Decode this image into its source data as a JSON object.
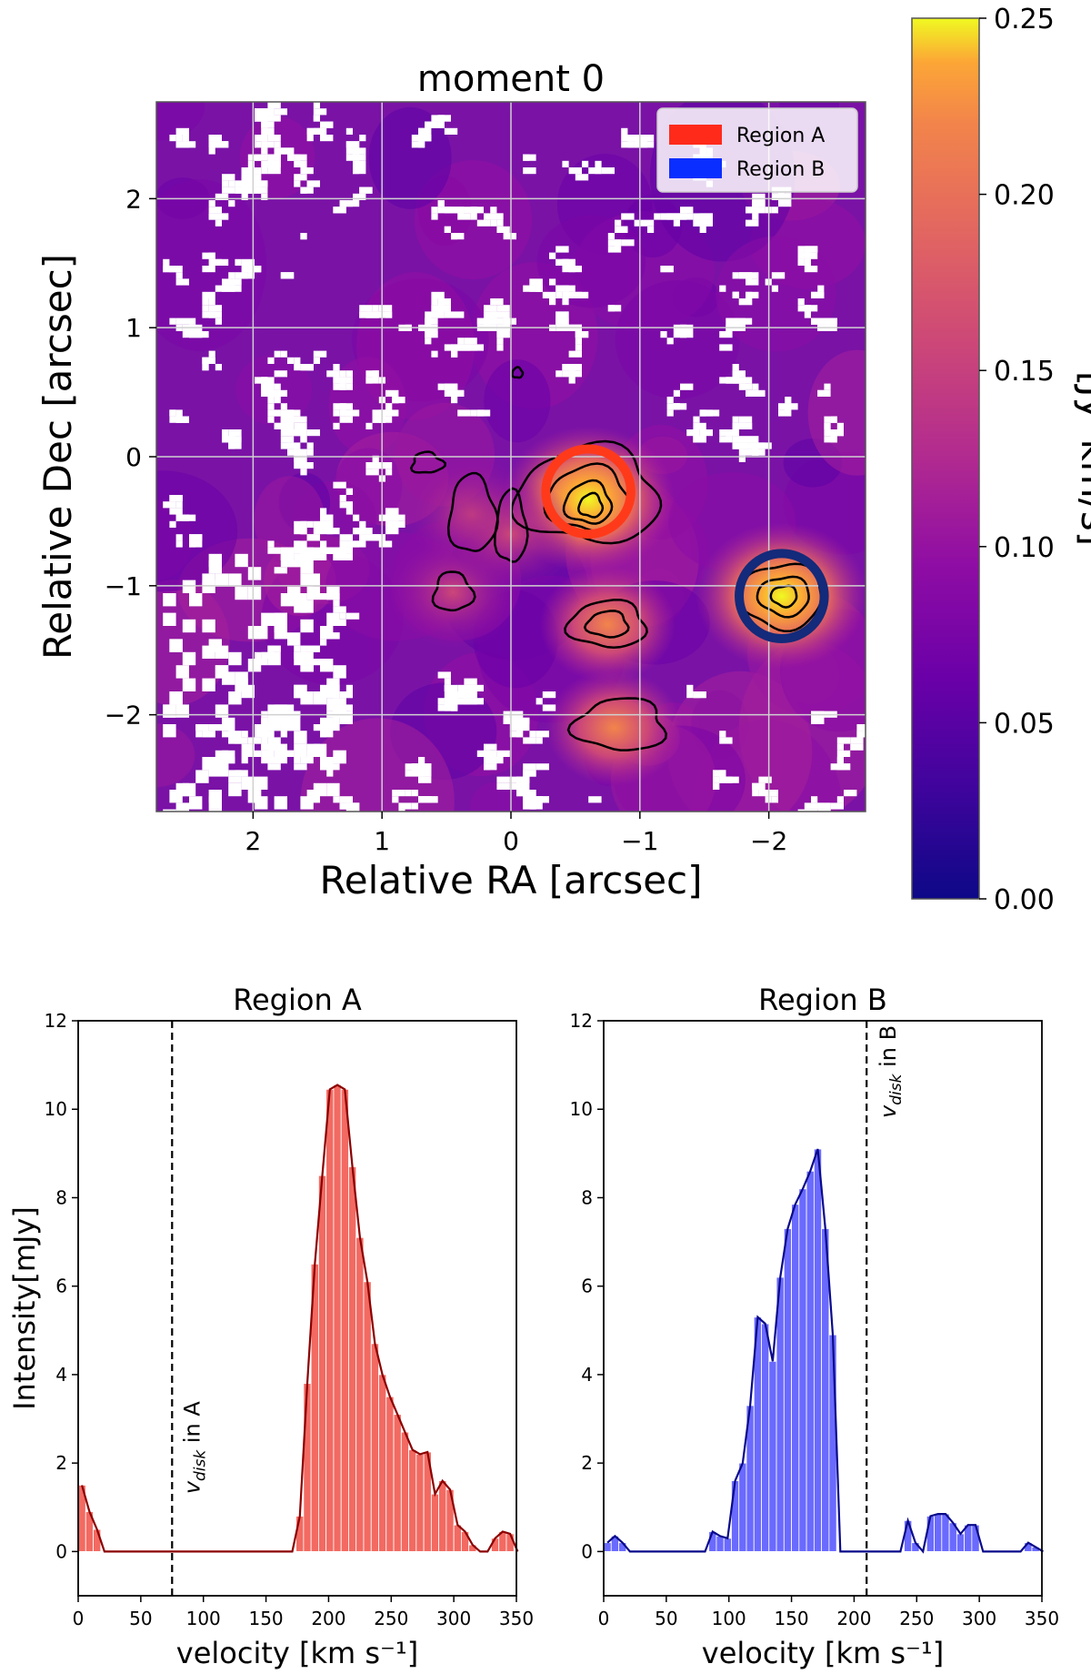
{
  "chart_data": [
    {
      "type": "heatmap",
      "title": "moment 0",
      "xlabel": "Relative RA [arcsec]",
      "ylabel": "Relative Dec [arcsec]",
      "xlim": [
        2.75,
        -2.75
      ],
      "ylim": [
        -2.75,
        2.75
      ],
      "xticks": [
        2,
        1,
        0,
        -1,
        -2
      ],
      "xtick_labels": [
        "2",
        "1",
        "0",
        "−1",
        "−2"
      ],
      "yticks": [
        2,
        1,
        0,
        -1,
        -2
      ],
      "ytick_labels": [
        "2",
        "1",
        "0",
        "−1",
        "−2"
      ],
      "grid": true,
      "colormap": "plasma",
      "colorbar": {
        "label": "[Jy*km/s]",
        "range": [
          0.0,
          0.25
        ],
        "ticks": [
          0.25,
          0.2,
          0.15,
          0.1,
          0.05,
          0.0
        ],
        "tick_labels": [
          "0.25",
          "0.20",
          "0.15",
          "0.10",
          "0.05",
          "0.00"
        ]
      },
      "legend": {
        "placement": "top-right",
        "entries": [
          {
            "label": "Region A",
            "color": "#ff2a1a"
          },
          {
            "label": "Region B",
            "color": "#0a2eff"
          }
        ]
      },
      "regions": [
        {
          "name": "Region A",
          "ra": -0.6,
          "dec": -0.27,
          "radius": 0.33,
          "color": "#ff3a1a"
        },
        {
          "name": "Region B",
          "ra": -2.1,
          "dec": -1.08,
          "radius": 0.33,
          "color": "#142a7a"
        }
      ],
      "emission_peaks": [
        {
          "ra": -0.6,
          "dec": -0.33,
          "value": 0.25
        },
        {
          "ra": -2.1,
          "dec": -1.08,
          "value": 0.21
        },
        {
          "ra": -0.75,
          "dec": -1.3,
          "value": 0.17
        },
        {
          "ra": -0.8,
          "dec": -2.1,
          "value": 0.15
        },
        {
          "ra": 0.3,
          "dec": -0.45,
          "value": 0.14
        },
        {
          "ra": 0.45,
          "dec": -1.05,
          "value": 0.13
        },
        {
          "ra": 0.0,
          "dec": -0.6,
          "value": 0.13
        }
      ]
    },
    {
      "type": "bar",
      "title": "Region A",
      "xlabel": "velocity [km s⁻¹]",
      "ylabel": "Intensity[mJy]",
      "xlim": [
        0,
        350
      ],
      "ylim": [
        -1,
        12
      ],
      "xticks": [
        0,
        50,
        100,
        150,
        200,
        250,
        300,
        350
      ],
      "yticks": [
        0,
        2,
        4,
        6,
        8,
        10,
        12
      ],
      "bar_color": "#f26a62",
      "line_color": "#8b0000",
      "bin_width": 6,
      "x": [
        0,
        6,
        12,
        18,
        24,
        30,
        36,
        42,
        48,
        54,
        60,
        66,
        72,
        78,
        84,
        90,
        96,
        102,
        108,
        114,
        120,
        126,
        132,
        138,
        144,
        150,
        156,
        162,
        168,
        174,
        180,
        186,
        192,
        198,
        204,
        210,
        216,
        222,
        228,
        234,
        240,
        246,
        252,
        258,
        264,
        270,
        276,
        282,
        288,
        294,
        300,
        306,
        312,
        318,
        324,
        330,
        336,
        342,
        348
      ],
      "values": [
        1.5,
        0.9,
        0.5,
        0,
        0,
        0,
        0,
        0,
        0,
        0,
        0,
        0,
        0,
        0,
        0,
        0,
        0,
        0,
        0,
        0,
        0,
        0,
        0,
        0,
        0,
        0,
        0,
        0,
        0,
        0.8,
        3.8,
        6.5,
        8.5,
        10.45,
        10.55,
        10.45,
        8.7,
        7.1,
        6.1,
        4.7,
        4.0,
        3.5,
        3.1,
        2.7,
        2.3,
        2.2,
        2.25,
        1.3,
        1.6,
        1.4,
        0.6,
        0.45,
        0.15,
        0,
        0,
        0.3,
        0.45,
        0.4,
        0
      ],
      "reference_line": {
        "x": 75,
        "label": "v_disk in A",
        "label_main": "v",
        "label_sub": "disk",
        "label_rest": " in A"
      }
    },
    {
      "type": "bar",
      "title": "Region B",
      "xlabel": "velocity [km s⁻¹]",
      "ylabel": "",
      "xlim": [
        0,
        350
      ],
      "ylim": [
        -1,
        12
      ],
      "xticks": [
        0,
        50,
        100,
        150,
        200,
        250,
        300,
        350
      ],
      "yticks": [
        0,
        2,
        4,
        6,
        8,
        10,
        12
      ],
      "bar_color": "#6a6aff",
      "line_color": "#0a0a8a",
      "bin_width": 6,
      "x": [
        0,
        6,
        12,
        18,
        24,
        30,
        36,
        42,
        48,
        54,
        60,
        66,
        72,
        78,
        84,
        90,
        96,
        102,
        108,
        114,
        120,
        126,
        132,
        138,
        144,
        150,
        156,
        162,
        168,
        174,
        180,
        186,
        192,
        198,
        204,
        210,
        216,
        222,
        228,
        234,
        240,
        246,
        252,
        258,
        264,
        270,
        276,
        282,
        288,
        294,
        300,
        306,
        312,
        318,
        324,
        330,
        336,
        342,
        348
      ],
      "values": [
        0.2,
        0.35,
        0.2,
        0,
        0,
        0,
        0,
        0,
        0,
        0,
        0,
        0,
        0,
        0,
        0.45,
        0.35,
        0.3,
        1.6,
        2.0,
        3.3,
        5.3,
        5.15,
        4.3,
        6.2,
        7.3,
        7.85,
        8.2,
        8.6,
        9.1,
        7.3,
        4.9,
        0,
        0,
        0,
        0,
        0,
        0,
        0,
        0,
        0,
        0.7,
        0.2,
        0.0,
        0.8,
        0.85,
        0.85,
        0.65,
        0.4,
        0.6,
        0.6,
        0,
        0,
        0,
        0,
        0,
        0,
        0.2,
        0.1,
        0
      ],
      "reference_line": {
        "x": 210,
        "label": "v_disk in B",
        "label_main": "v",
        "label_sub": "disk",
        "label_rest": " in B"
      }
    }
  ]
}
